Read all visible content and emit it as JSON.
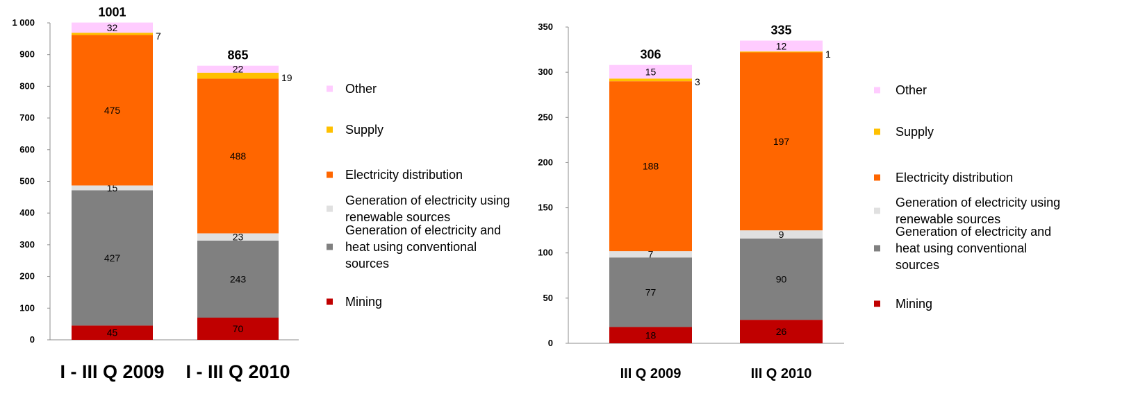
{
  "legend_series": [
    "Mining",
    "Generation of electricity and heat using conventional sources",
    "Generation of electricity using renewable sources",
    "Electricity distribution",
    "Supply",
    "Other"
  ],
  "legend_lines": [
    [
      "Mining"
    ],
    [
      "Generation of electricity and",
      "heat using conventional",
      "sources"
    ],
    [
      "Generation of electricity using",
      "renewable sources"
    ],
    [
      "Electricity distribution"
    ],
    [
      "Supply"
    ],
    [
      "Other"
    ]
  ],
  "colors": {
    "Mining": "#c00000",
    "Generation of electricity and heat using conventional sources": "#808080",
    "Generation of electricity using renewable sources": "#e0e0e0",
    "Electricity distribution": "#ff6600",
    "Supply": "#ffc000",
    "Other": "#ffccff"
  },
  "chart_data": [
    {
      "type": "bar",
      "stacked": true,
      "categories": [
        "I - III Q 2009",
        "I - III Q 2010"
      ],
      "ylim": [
        0,
        1000
      ],
      "yticks": [
        "0",
        "100",
        "200",
        "300",
        "400",
        "500",
        "600",
        "700",
        "800",
        "900",
        "1 000"
      ],
      "totals": [
        "1001",
        "865"
      ],
      "legend_position": "right",
      "series": [
        {
          "name": "Mining",
          "values": [
            45,
            70
          ]
        },
        {
          "name": "Generation of electricity and heat using conventional sources",
          "values": [
            427,
            243
          ]
        },
        {
          "name": "Generation of electricity using renewable sources",
          "values": [
            15,
            23
          ]
        },
        {
          "name": "Electricity distribution",
          "values": [
            475,
            488
          ]
        },
        {
          "name": "Supply",
          "values": [
            7,
            19
          ]
        },
        {
          "name": "Other",
          "values": [
            32,
            22
          ]
        }
      ]
    },
    {
      "type": "bar",
      "stacked": true,
      "categories": [
        "III Q 2009",
        "III Q 2010"
      ],
      "ylim": [
        0,
        350
      ],
      "yticks": [
        "0",
        "50",
        "100",
        "150",
        "200",
        "250",
        "300",
        "350"
      ],
      "totals": [
        "306",
        "335"
      ],
      "legend_position": "right",
      "series": [
        {
          "name": "Mining",
          "values": [
            18,
            26
          ]
        },
        {
          "name": "Generation of electricity and heat using conventional sources",
          "values": [
            77,
            90
          ]
        },
        {
          "name": "Generation of electricity using renewable sources",
          "values": [
            7,
            9
          ]
        },
        {
          "name": "Electricity distribution",
          "values": [
            188,
            197
          ]
        },
        {
          "name": "Supply",
          "values": [
            3,
            1
          ]
        },
        {
          "name": "Other",
          "values": [
            15,
            12
          ]
        }
      ]
    }
  ]
}
